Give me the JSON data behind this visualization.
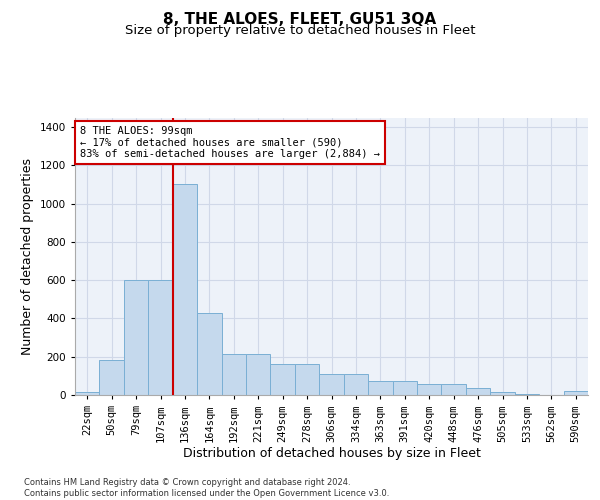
{
  "title": "8, THE ALOES, FLEET, GU51 3QA",
  "subtitle": "Size of property relative to detached houses in Fleet",
  "xlabel": "Distribution of detached houses by size in Fleet",
  "ylabel": "Number of detached properties",
  "categories": [
    "22sqm",
    "50sqm",
    "79sqm",
    "107sqm",
    "136sqm",
    "164sqm",
    "192sqm",
    "221sqm",
    "249sqm",
    "278sqm",
    "306sqm",
    "334sqm",
    "363sqm",
    "391sqm",
    "420sqm",
    "448sqm",
    "476sqm",
    "505sqm",
    "533sqm",
    "562sqm",
    "590sqm"
  ],
  "bar_values": [
    15,
    185,
    600,
    600,
    1100,
    430,
    215,
    215,
    160,
    160,
    110,
    110,
    75,
    75,
    55,
    55,
    35,
    15,
    5,
    2,
    20
  ],
  "bar_color": "#c5d9ed",
  "bar_edge_color": "#7aafd4",
  "grid_color": "#d0d8e8",
  "background_color": "#edf2f9",
  "vline_x_index": 3.5,
  "vline_color": "#cc0000",
  "annotation_text": "8 THE ALOES: 99sqm\n← 17% of detached houses are smaller (590)\n83% of semi-detached houses are larger (2,884) →",
  "annotation_box_color": "#cc0000",
  "footer": "Contains HM Land Registry data © Crown copyright and database right 2024.\nContains public sector information licensed under the Open Government Licence v3.0.",
  "ylim": [
    0,
    1450
  ],
  "yticks": [
    0,
    200,
    400,
    600,
    800,
    1000,
    1200,
    1400
  ],
  "title_fontsize": 11,
  "subtitle_fontsize": 9.5,
  "axis_label_fontsize": 9,
  "tick_fontsize": 7.5,
  "footer_fontsize": 6
}
